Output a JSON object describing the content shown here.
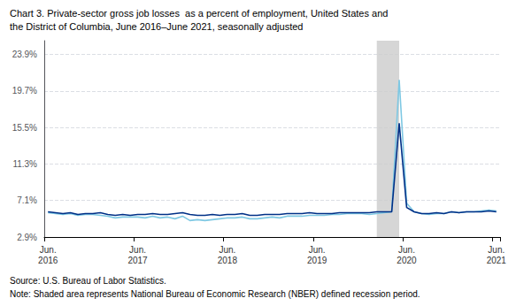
{
  "chart_data": {
    "type": "line",
    "title": "Chart 3. Private-sector gross job losses  as a percent of employment, United States and",
    "subtitle": "the District of Columbia, June 2016–June 2021, seasonally adjusted",
    "annotations": [
      "Source: U.S. Bureau of Labor Statistics.",
      "Note: Shaded area represents National Bureau of Economic Research (NBER) defined recession period."
    ],
    "categories": [
      "Jun.\n2016",
      null,
      null,
      null,
      null,
      null,
      null,
      null,
      null,
      null,
      null,
      null,
      "Jun.\n2017",
      null,
      null,
      null,
      null,
      null,
      null,
      null,
      null,
      null,
      null,
      null,
      "Jun.\n2018",
      null,
      null,
      null,
      null,
      null,
      null,
      null,
      null,
      null,
      null,
      null,
      "Jun.\n2019",
      null,
      null,
      null,
      null,
      null,
      null,
      null,
      null,
      null,
      null,
      null,
      "Jun.\n2020",
      null,
      null,
      null,
      null,
      null,
      null,
      null,
      null,
      null,
      null,
      null,
      "Jun.\n2021"
    ],
    "series": [
      {
        "color": "#7EC8E3",
        "values": [
          5.7,
          5.6,
          5.5,
          5.6,
          5.4,
          5.5,
          5.5,
          5.4,
          5.3,
          5.1,
          5.2,
          5.2,
          5.2,
          5.1,
          5.3,
          5.1,
          5.2,
          5.0,
          5.3,
          4.8,
          4.9,
          4.8,
          4.9,
          5.0,
          5.1,
          5.1,
          5.2,
          5.0,
          5.0,
          5.1,
          5.2,
          5.1,
          5.3,
          5.3,
          5.3,
          5.4,
          5.4,
          5.4,
          5.5,
          5.5,
          5.6,
          5.6,
          5.6,
          5.5,
          5.6,
          5.7,
          5.8,
          21.0,
          6.8,
          5.8,
          5.6,
          5.5,
          5.6,
          5.6,
          5.8,
          5.7,
          5.8,
          5.8,
          5.9,
          6.0,
          5.9
        ]
      },
      {
        "color": "#003087",
        "values": [
          5.8,
          5.7,
          5.6,
          5.7,
          5.5,
          5.6,
          5.6,
          5.7,
          5.5,
          5.4,
          5.5,
          5.4,
          5.5,
          5.5,
          5.6,
          5.5,
          5.5,
          5.6,
          5.7,
          5.5,
          5.4,
          5.4,
          5.5,
          5.4,
          5.5,
          5.5,
          5.6,
          5.4,
          5.4,
          5.5,
          5.5,
          5.5,
          5.6,
          5.6,
          5.6,
          5.7,
          5.6,
          5.6,
          5.6,
          5.7,
          5.7,
          5.7,
          5.7,
          5.7,
          5.8,
          5.8,
          5.8,
          16.0,
          6.3,
          5.8,
          5.6,
          5.6,
          5.7,
          5.6,
          5.8,
          5.7,
          5.8,
          5.8,
          5.8,
          5.9,
          5.8
        ]
      }
    ],
    "shaded_region": {
      "start": 44,
      "end": 47,
      "color": "#CCCCCC"
    },
    "ylim": [
      2.9,
      25.5
    ],
    "yticks": [
      {
        "value": 2.9,
        "label": "2.9%"
      },
      {
        "value": 7.1,
        "label": "7.1%"
      },
      {
        "value": 11.3,
        "label": "11.3%"
      },
      {
        "value": 15.5,
        "label": "15.5%"
      },
      {
        "value": 19.7,
        "label": "19.7%"
      },
      {
        "value": 23.9,
        "label": "23.9%"
      }
    ],
    "grid": true
  }
}
